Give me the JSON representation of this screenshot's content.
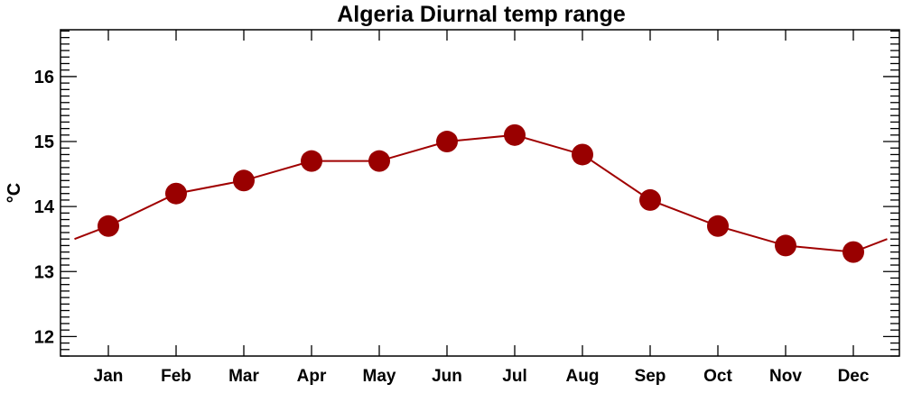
{
  "chart_data": {
    "type": "line",
    "title": "Algeria Diurnal temp range",
    "xlabel": "",
    "ylabel": "°C",
    "categories": [
      "Jan",
      "Feb",
      "Mar",
      "Apr",
      "May",
      "Jun",
      "Jul",
      "Aug",
      "Sep",
      "Oct",
      "Nov",
      "Dec"
    ],
    "values": [
      13.7,
      14.2,
      14.4,
      14.7,
      14.7,
      15.0,
      15.1,
      14.8,
      14.1,
      13.7,
      13.4,
      13.3
    ],
    "ylim": [
      11.7,
      16.72
    ],
    "yticks": [
      "12",
      "13",
      "14",
      "15",
      "16"
    ],
    "ytick_values": [
      12,
      13,
      14,
      15,
      16
    ],
    "minor_tick_step": 0.1,
    "grid": false,
    "legend": "none",
    "line_color": "#a00000",
    "marker_color": "#990000"
  }
}
